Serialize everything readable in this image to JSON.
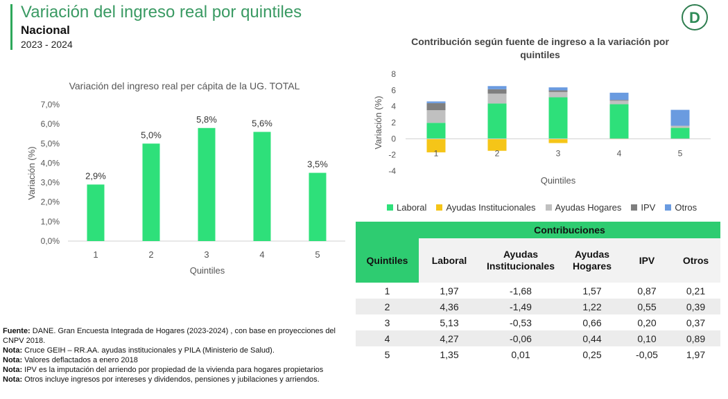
{
  "header": {
    "title": "Variación del ingreso real por quintiles",
    "subtitle": "Nacional",
    "period": "2023 - 2024",
    "logo_letter": "D"
  },
  "colors": {
    "accent": "#2ea85a",
    "bar": "#2ee07a",
    "laboral": "#2ee07a",
    "ayudas_inst": "#f5c518",
    "ayudas_hog": "#c0c0c0",
    "ipv": "#7f7f7f",
    "otros": "#6a9be0"
  },
  "chart_data": [
    {
      "type": "bar",
      "title": "Variación del ingreso real per cápita de la UG. TOTAL",
      "xlabel": "Quintiles",
      "ylabel": "Variación (%)",
      "categories": [
        "1",
        "2",
        "3",
        "4",
        "5"
      ],
      "values": [
        2.9,
        5.0,
        5.8,
        5.6,
        3.5
      ],
      "data_labels": [
        "2,9%",
        "5,0%",
        "5,8%",
        "5,6%",
        "3,5%"
      ],
      "ylim": [
        0,
        7
      ],
      "yticks": [
        "0,0%",
        "1,0%",
        "2,0%",
        "3,0%",
        "4,0%",
        "5,0%",
        "6,0%",
        "7,0%"
      ]
    },
    {
      "type": "bar",
      "stacked": true,
      "title": "Contribución según fuente de ingreso a la variación por quintiles",
      "xlabel": "Quintiles",
      "ylabel": "Variación (%)",
      "categories": [
        "1",
        "2",
        "3",
        "4",
        "5"
      ],
      "ylim": [
        -4,
        8
      ],
      "yticks": [
        "-4",
        "-2",
        "0",
        "2",
        "4",
        "6",
        "8"
      ],
      "series": [
        {
          "name": "Laboral",
          "values": [
            1.97,
            4.36,
            5.13,
            4.27,
            1.35
          ]
        },
        {
          "name": "Ayudas Institucionales",
          "values": [
            -1.68,
            -1.49,
            -0.53,
            -0.06,
            0.01
          ]
        },
        {
          "name": "Ayudas Hogares",
          "values": [
            1.57,
            1.22,
            0.66,
            0.44,
            0.25
          ]
        },
        {
          "name": "IPV",
          "values": [
            0.87,
            0.55,
            0.2,
            0.1,
            -0.05
          ]
        },
        {
          "name": "Otros",
          "values": [
            0.21,
            0.39,
            0.37,
            0.89,
            1.97
          ]
        }
      ]
    }
  ],
  "table": {
    "title": "Contribuciones",
    "headers": [
      "Quintiles",
      "Laboral",
      "Ayudas Institucionales",
      "Ayudas Hogares",
      "IPV",
      "Otros"
    ],
    "rows": [
      [
        "1",
        "1,97",
        "-1,68",
        "1,57",
        "0,87",
        "0,21"
      ],
      [
        "2",
        "4,36",
        "-1,49",
        "1,22",
        "0,55",
        "0,39"
      ],
      [
        "3",
        "5,13",
        "-0,53",
        "0,66",
        "0,20",
        "0,37"
      ],
      [
        "4",
        "4,27",
        "-0,06",
        "0,44",
        "0,10",
        "0,89"
      ],
      [
        "5",
        "1,35",
        "0,01",
        "0,25",
        "-0,05",
        "1,97"
      ]
    ]
  },
  "notes": [
    {
      "label": "Fuente:",
      "text": " DANE. Gran Encuesta Integrada de Hogares (2023-2024) , con base en proyecciones del CNPV 2018."
    },
    {
      "label": "Nota:",
      "text": " Cruce GEIH – RR.AA. ayudas institucionales y PILA (Ministerio de Salud)."
    },
    {
      "label": "Nota:",
      "text": " Valores deflactados a enero 2018"
    },
    {
      "label": "Nota:",
      "text": " IPV es la imputación del arriendo por propiedad de la vivienda para hogares propietarios"
    },
    {
      "label": "Nota:",
      "text": " Otros incluye ingresos por intereses y dividendos, pensiones y jubilaciones y arriendos."
    }
  ]
}
